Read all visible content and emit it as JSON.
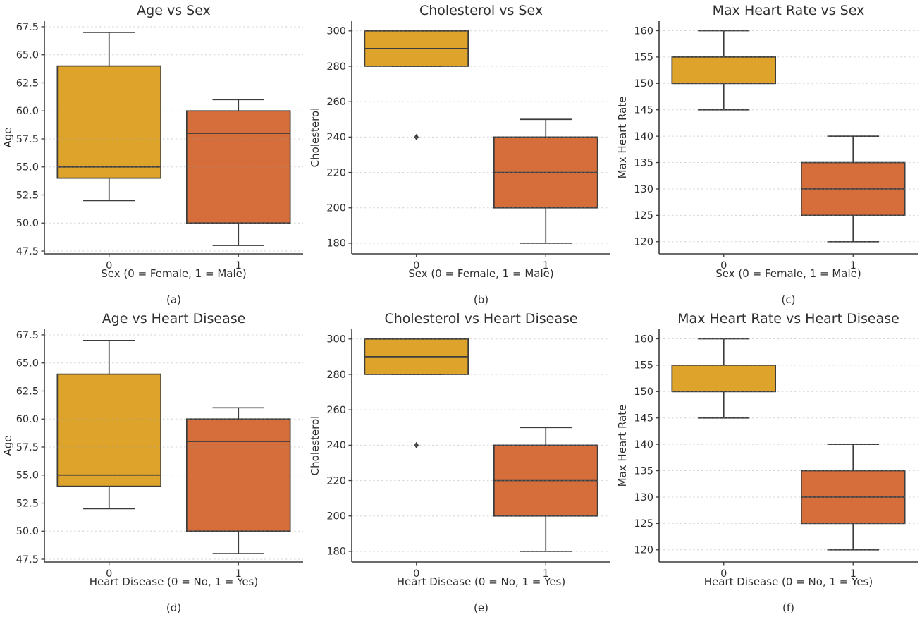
{
  "page": {
    "background": "#ffffff",
    "description_title": "Box plot grid of heart data"
  },
  "colors": {
    "box_group0": "#dda32a",
    "box_group1": "#d56e3b",
    "edge": "#3c3c3c",
    "grid": "#9a9a9a",
    "spine": "#3c3c3c",
    "text": "#2e2e2e",
    "flier": "#3c3c3c"
  },
  "chart_data": [
    {
      "type": "box",
      "title": "Age vs Sex",
      "xlabel": "Sex (0 = Female, 1 = Male)",
      "ylabel": "Age",
      "caption": "(a)",
      "categories": [
        "0",
        "1"
      ],
      "ytick_labels": [
        "47.5",
        "50.0",
        "52.5",
        "55.0",
        "57.5",
        "60.0",
        "62.5",
        "65.0",
        "67.5"
      ],
      "ylim": [
        47.25,
        68.0
      ],
      "grid": true,
      "legend": "none",
      "series": [
        {
          "category": "0",
          "color_key": "box_group0",
          "whisker_low": 52,
          "q1": 54,
          "median": 55,
          "q3": 64,
          "whisker_high": 67,
          "outliers": []
        },
        {
          "category": "1",
          "color_key": "box_group1",
          "whisker_low": 48,
          "q1": 50,
          "median": 58,
          "q3": 60,
          "whisker_high": 61,
          "outliers": []
        }
      ]
    },
    {
      "type": "box",
      "title": "Cholesterol vs Sex",
      "xlabel": "Sex (0 = Female, 1 = Male)",
      "ylabel": "Cholesterol",
      "caption": "(b)",
      "categories": [
        "0",
        "1"
      ],
      "ytick_labels": [
        "180",
        "200",
        "220",
        "240",
        "260",
        "280",
        "300"
      ],
      "ylim": [
        174,
        305.5
      ],
      "grid": true,
      "legend": "none",
      "series": [
        {
          "category": "0",
          "color_key": "box_group0",
          "whisker_low": 280,
          "q1": 280,
          "median": 290,
          "q3": 300,
          "whisker_high": 300,
          "outliers": [
            240
          ]
        },
        {
          "category": "1",
          "color_key": "box_group1",
          "whisker_low": 180,
          "q1": 200,
          "median": 220,
          "q3": 240,
          "whisker_high": 250,
          "outliers": []
        }
      ]
    },
    {
      "type": "box",
      "title": "Max Heart Rate vs Sex",
      "xlabel": "Sex (0 = Female, 1 = Male)",
      "ylabel": "Max Heart Rate",
      "caption": "(c)",
      "categories": [
        "0",
        "1"
      ],
      "ytick_labels": [
        "120",
        "125",
        "130",
        "135",
        "140",
        "145",
        "150",
        "155",
        "160"
      ],
      "ylim": [
        117.7,
        161.8
      ],
      "grid": true,
      "legend": "none",
      "series": [
        {
          "category": "0",
          "color_key": "box_group0",
          "whisker_low": 145,
          "q1": 150,
          "median": 150,
          "q3": 155,
          "whisker_high": 160,
          "outliers": []
        },
        {
          "category": "1",
          "color_key": "box_group1",
          "whisker_low": 120,
          "q1": 125,
          "median": 130,
          "q3": 135,
          "whisker_high": 140,
          "outliers": []
        }
      ]
    },
    {
      "type": "box",
      "title": "Age vs Heart Disease",
      "xlabel": "Heart Disease (0 = No, 1 = Yes)",
      "ylabel": "Age",
      "caption": "(d)",
      "categories": [
        "0",
        "1"
      ],
      "ytick_labels": [
        "47.5",
        "50.0",
        "52.5",
        "55.0",
        "57.5",
        "60.0",
        "62.5",
        "65.0",
        "67.5"
      ],
      "ylim": [
        47.25,
        68.0
      ],
      "grid": true,
      "legend": "none",
      "series": [
        {
          "category": "0",
          "color_key": "box_group0",
          "whisker_low": 52,
          "q1": 54,
          "median": 55,
          "q3": 64,
          "whisker_high": 67,
          "outliers": []
        },
        {
          "category": "1",
          "color_key": "box_group1",
          "whisker_low": 48,
          "q1": 50,
          "median": 58,
          "q3": 60,
          "whisker_high": 61,
          "outliers": []
        }
      ]
    },
    {
      "type": "box",
      "title": "Cholesterol vs Heart Disease",
      "xlabel": "Heart Disease (0 = No, 1 = Yes)",
      "ylabel": "Cholesterol",
      "caption": "(e)",
      "categories": [
        "0",
        "1"
      ],
      "ytick_labels": [
        "180",
        "200",
        "220",
        "240",
        "260",
        "280",
        "300"
      ],
      "ylim": [
        174,
        305.5
      ],
      "grid": true,
      "legend": "none",
      "series": [
        {
          "category": "0",
          "color_key": "box_group0",
          "whisker_low": 280,
          "q1": 280,
          "median": 290,
          "q3": 300,
          "whisker_high": 300,
          "outliers": [
            240
          ]
        },
        {
          "category": "1",
          "color_key": "box_group1",
          "whisker_low": 180,
          "q1": 200,
          "median": 220,
          "q3": 240,
          "whisker_high": 250,
          "outliers": []
        }
      ]
    },
    {
      "type": "box",
      "title": "Max Heart Rate vs Heart Disease",
      "xlabel": "Heart Disease (0 = No, 1 = Yes)",
      "ylabel": "Max Heart Rate",
      "caption": "(f)",
      "categories": [
        "0",
        "1"
      ],
      "ytick_labels": [
        "120",
        "125",
        "130",
        "135",
        "140",
        "145",
        "150",
        "155",
        "160"
      ],
      "ylim": [
        117.7,
        161.8
      ],
      "grid": true,
      "legend": "none",
      "series": [
        {
          "category": "0",
          "color_key": "box_group0",
          "whisker_low": 145,
          "q1": 150,
          "median": 150,
          "q3": 155,
          "whisker_high": 160,
          "outliers": []
        },
        {
          "category": "1",
          "color_key": "box_group1",
          "whisker_low": 120,
          "q1": 125,
          "median": 130,
          "q3": 135,
          "whisker_high": 140,
          "outliers": []
        }
      ]
    }
  ]
}
